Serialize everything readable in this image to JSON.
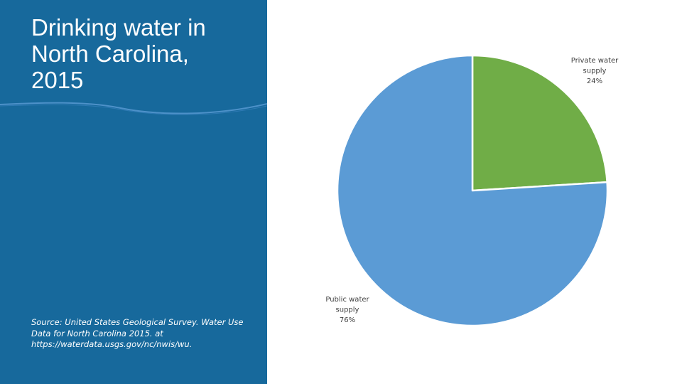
{
  "slide": {
    "title_lines": [
      "Drinking water in",
      "North Carolina,",
      "2015"
    ],
    "source_lines": [
      "Source: United States Geological Survey. Water Use",
      "Data for North Carolina 2015. at",
      "https://waterdata.usgs.gov/nc/nwis/wu."
    ],
    "panel_color": "#17699c"
  },
  "chart_data": {
    "type": "pie",
    "title": "",
    "slices": [
      {
        "name": "Private water supply",
        "value": 24,
        "label_lines": [
          "Private water",
          "supply",
          "24%"
        ],
        "color": "#70ad47"
      },
      {
        "name": "Public water supply",
        "value": 76,
        "label_lines": [
          "Public water",
          "supply",
          "76%"
        ],
        "color": "#5b9bd5"
      }
    ],
    "start_angle_deg": 0,
    "direction": "clockwise",
    "legend": "none"
  }
}
